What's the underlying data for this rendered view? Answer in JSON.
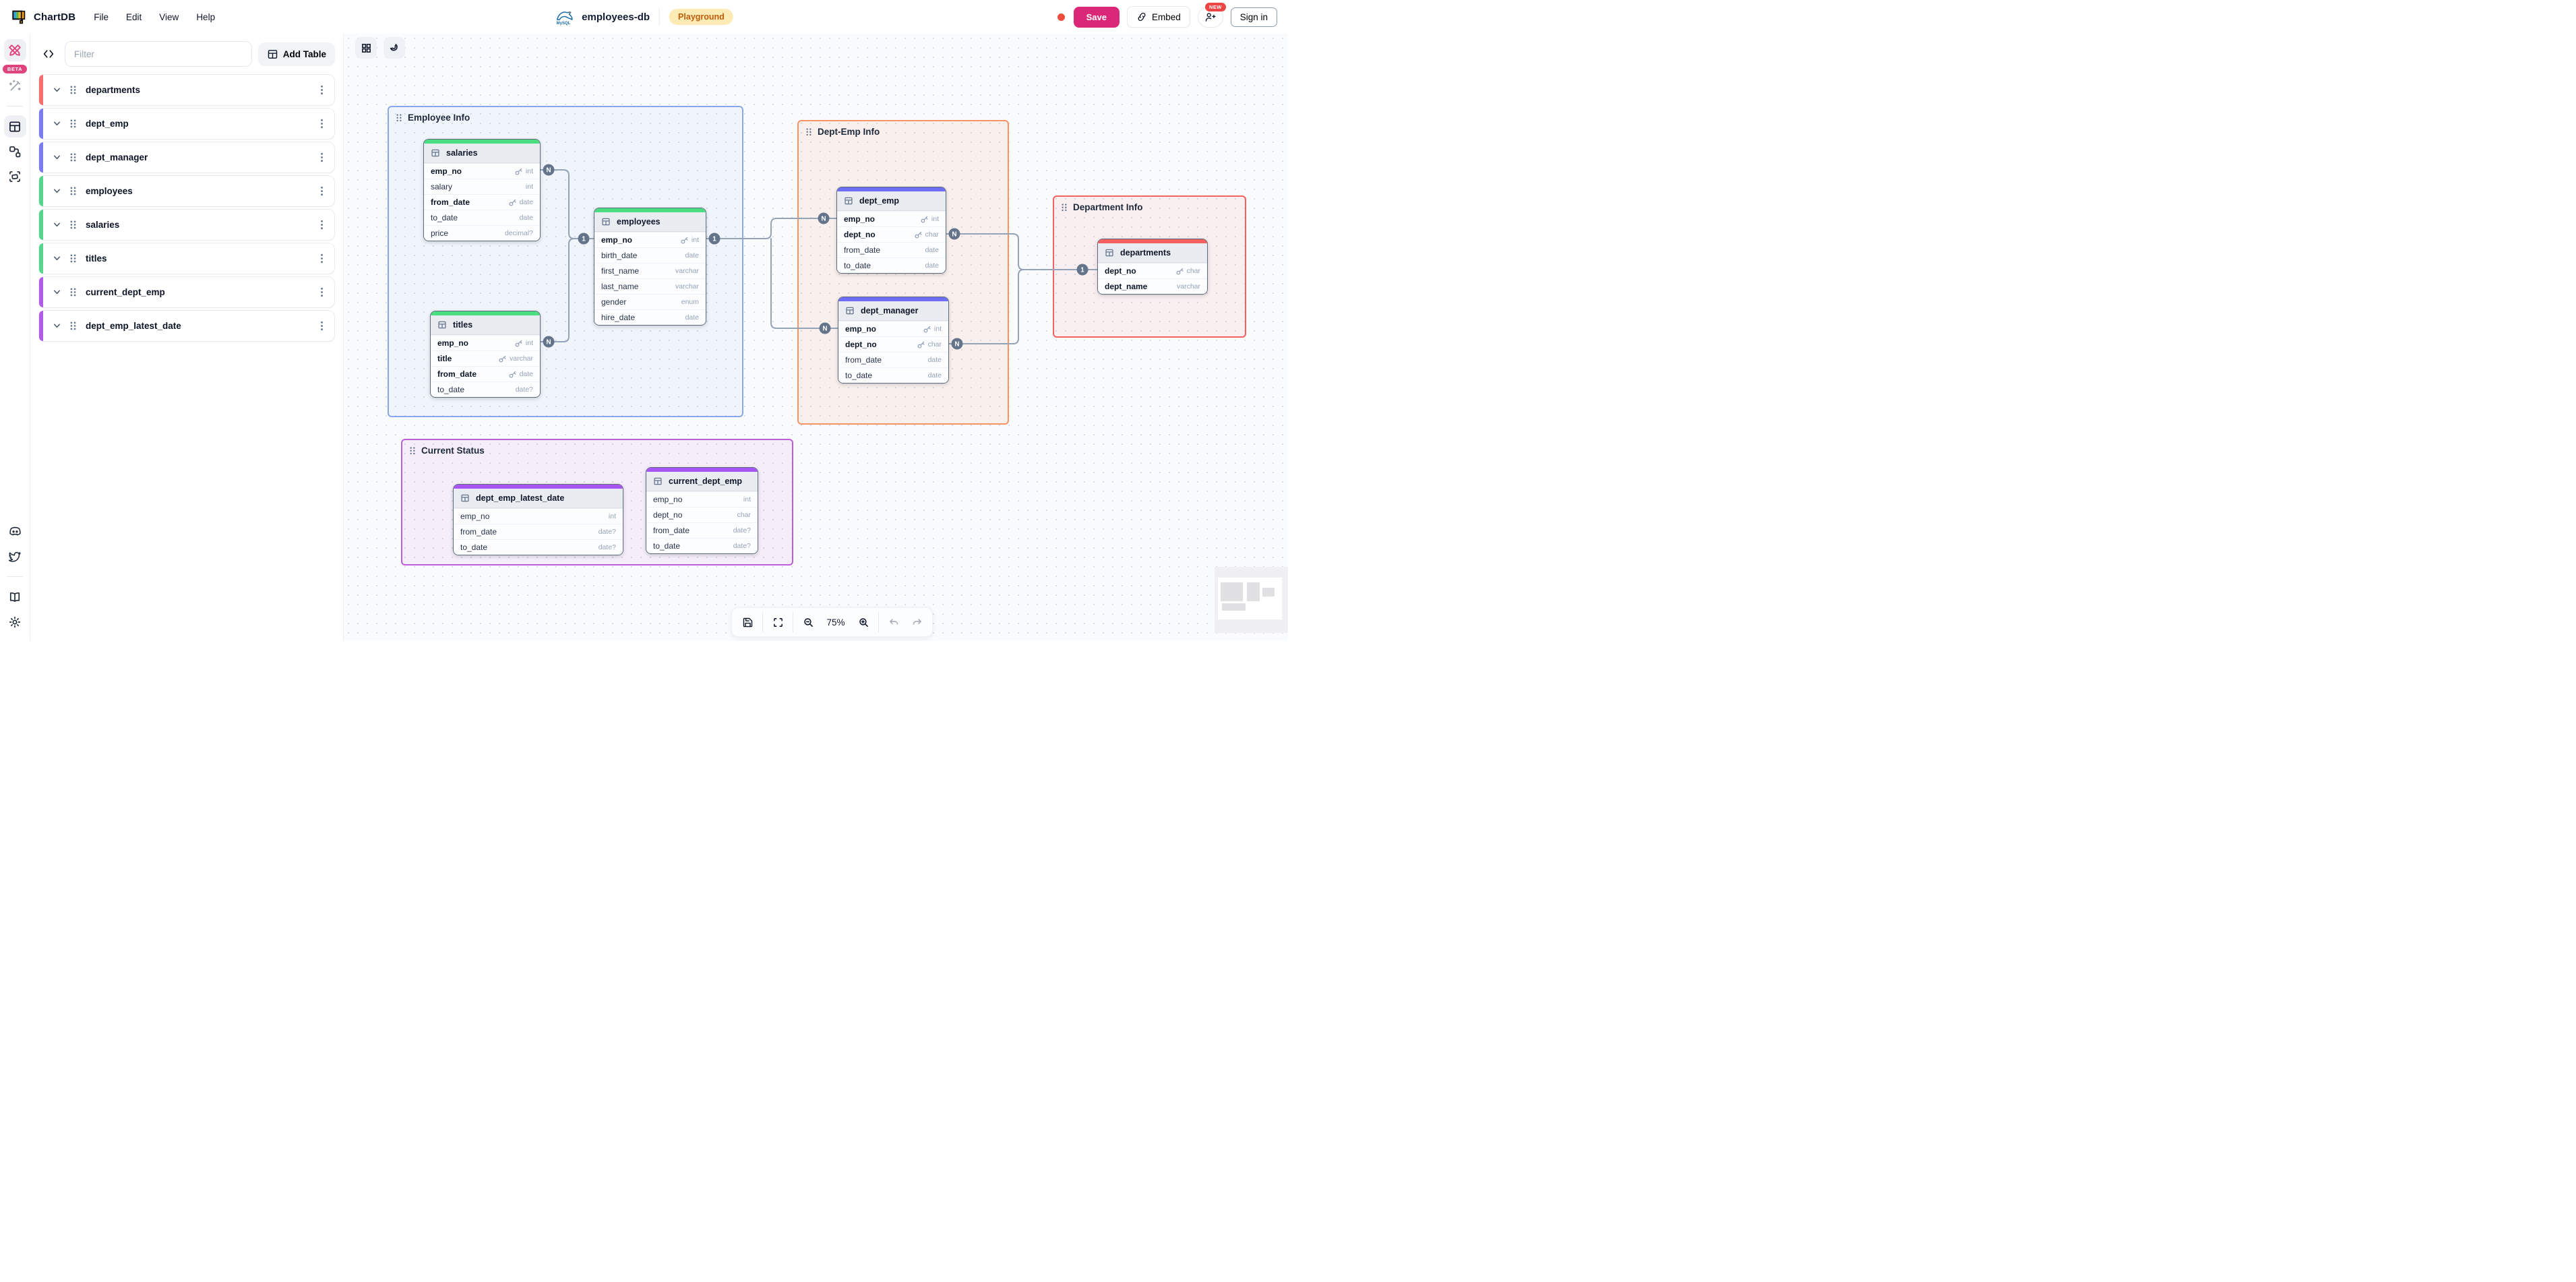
{
  "topbar": {
    "app_name": "ChartDB",
    "menus": [
      "File",
      "Edit",
      "View",
      "Help"
    ],
    "database_name": "employees-db",
    "database_type": "mysql",
    "env_badge": "Playground",
    "save_label": "Save",
    "embed_label": "Embed",
    "new_badge": "NEW",
    "sign_in_label": "Sign in"
  },
  "rail": {
    "beta_badge": "BETA",
    "icons_top": [
      "chartdb-editor",
      "magic-wand",
      "tables-view",
      "relationships-view",
      "areas-view"
    ],
    "icons_bottom": [
      "discord",
      "twitter",
      "docs-book",
      "settings-gear"
    ]
  },
  "sidebar": {
    "filter_placeholder": "Filter",
    "add_table_label": "Add Table",
    "tables": [
      {
        "name": "departments",
        "accent": "#f76e6e"
      },
      {
        "name": "dept_emp",
        "accent": "#7a7cf0"
      },
      {
        "name": "dept_manager",
        "accent": "#7a7cf0"
      },
      {
        "name": "employees",
        "accent": "#56d68c"
      },
      {
        "name": "salaries",
        "accent": "#56d68c"
      },
      {
        "name": "titles",
        "accent": "#56d68c"
      },
      {
        "name": "current_dept_emp",
        "accent": "#b15ce6"
      },
      {
        "name": "dept_emp_latest_date",
        "accent": "#b15ce6"
      }
    ]
  },
  "canvas": {
    "areas": [
      {
        "name": "Employee Info",
        "border": "#87a9e9",
        "fill": "rgba(110,150,230,0.07)"
      },
      {
        "name": "Dept-Emp Info",
        "border": "#f79465",
        "fill": "rgba(247,148,101,0.10)"
      },
      {
        "name": "Department Info",
        "border": "#f26262",
        "fill": "rgba(242,98,98,0.08)"
      },
      {
        "name": "Current Status",
        "border": "#bb5fd8",
        "fill": "rgba(187,95,216,0.08)"
      }
    ],
    "tables": [
      {
        "name": "salaries",
        "color": "#4ade80",
        "fields": [
          {
            "field": "emp_no",
            "type": "int",
            "pk": true
          },
          {
            "field": "salary",
            "type": "int"
          },
          {
            "field": "from_date",
            "type": "date",
            "pk": true
          },
          {
            "field": "to_date",
            "type": "date"
          },
          {
            "field": "price",
            "type": "decimal?"
          }
        ]
      },
      {
        "name": "titles",
        "color": "#4ade80",
        "fields": [
          {
            "field": "emp_no",
            "type": "int",
            "pk": true
          },
          {
            "field": "title",
            "type": "varchar",
            "pk": true
          },
          {
            "field": "from_date",
            "type": "date",
            "pk": true
          },
          {
            "field": "to_date",
            "type": "date?"
          }
        ]
      },
      {
        "name": "employees",
        "color": "#4ade80",
        "fields": [
          {
            "field": "emp_no",
            "type": "int",
            "pk": true
          },
          {
            "field": "birth_date",
            "type": "date"
          },
          {
            "field": "first_name",
            "type": "varchar"
          },
          {
            "field": "last_name",
            "type": "varchar"
          },
          {
            "field": "gender",
            "type": "enum"
          },
          {
            "field": "hire_date",
            "type": "date"
          }
        ]
      },
      {
        "name": "dept_emp",
        "color": "#6d6ef5",
        "fields": [
          {
            "field": "emp_no",
            "type": "int",
            "pk": true
          },
          {
            "field": "dept_no",
            "type": "char",
            "pk": true
          },
          {
            "field": "from_date",
            "type": "date"
          },
          {
            "field": "to_date",
            "type": "date"
          }
        ]
      },
      {
        "name": "dept_manager",
        "color": "#6d6ef5",
        "fields": [
          {
            "field": "emp_no",
            "type": "int",
            "pk": true
          },
          {
            "field": "dept_no",
            "type": "char",
            "pk": true
          },
          {
            "field": "from_date",
            "type": "date"
          },
          {
            "field": "to_date",
            "type": "date"
          }
        ]
      },
      {
        "name": "departments",
        "color": "#f65f5f",
        "fields": [
          {
            "field": "dept_no",
            "type": "char",
            "pk": true
          },
          {
            "field": "dept_name",
            "type": "varchar",
            "bold": true
          }
        ]
      },
      {
        "name": "dept_emp_latest_date",
        "color": "#a855f7",
        "fields": [
          {
            "field": "emp_no",
            "type": "int"
          },
          {
            "field": "from_date",
            "type": "date?"
          },
          {
            "field": "to_date",
            "type": "date?"
          }
        ]
      },
      {
        "name": "current_dept_emp",
        "color": "#a855f7",
        "fields": [
          {
            "field": "emp_no",
            "type": "int"
          },
          {
            "field": "dept_no",
            "type": "char"
          },
          {
            "field": "from_date",
            "type": "date?"
          },
          {
            "field": "to_date",
            "type": "date?"
          }
        ]
      }
    ],
    "relationships": [
      {
        "from": "salaries.emp_no",
        "from_label": "N",
        "to": "employees.emp_no",
        "to_label": "1"
      },
      {
        "from": "titles.emp_no",
        "from_label": "N",
        "to": "employees.emp_no",
        "to_label": "1"
      },
      {
        "from": "employees.emp_no",
        "from_label": "1",
        "to": "dept_emp.emp_no",
        "to_label": "N"
      },
      {
        "from": "employees.emp_no",
        "from_label": "1",
        "to": "dept_manager.emp_no",
        "to_label": "N"
      },
      {
        "from": "dept_emp.dept_no",
        "from_label": "N",
        "to": "departments.dept_no",
        "to_label": "1"
      },
      {
        "from": "dept_manager.dept_no",
        "from_label": "N",
        "to": "departments.dept_no",
        "to_label": "1"
      }
    ]
  },
  "toolbar": {
    "zoom_level": "75%"
  }
}
